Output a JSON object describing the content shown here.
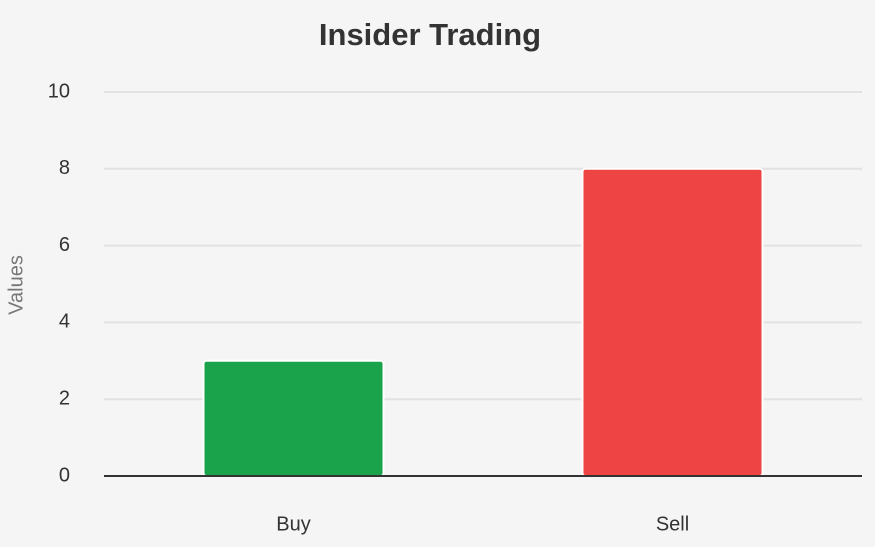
{
  "chart_data": {
    "type": "bar",
    "title": "Insider Trading",
    "ylabel": "Values",
    "categories": [
      "Buy",
      "Sell"
    ],
    "values": [
      3,
      8
    ],
    "colors": [
      "#1aa34a",
      "#ef4444"
    ],
    "ylim": [
      0,
      10
    ],
    "yticks": [
      0,
      2,
      4,
      6,
      8,
      10
    ],
    "grid": true
  }
}
